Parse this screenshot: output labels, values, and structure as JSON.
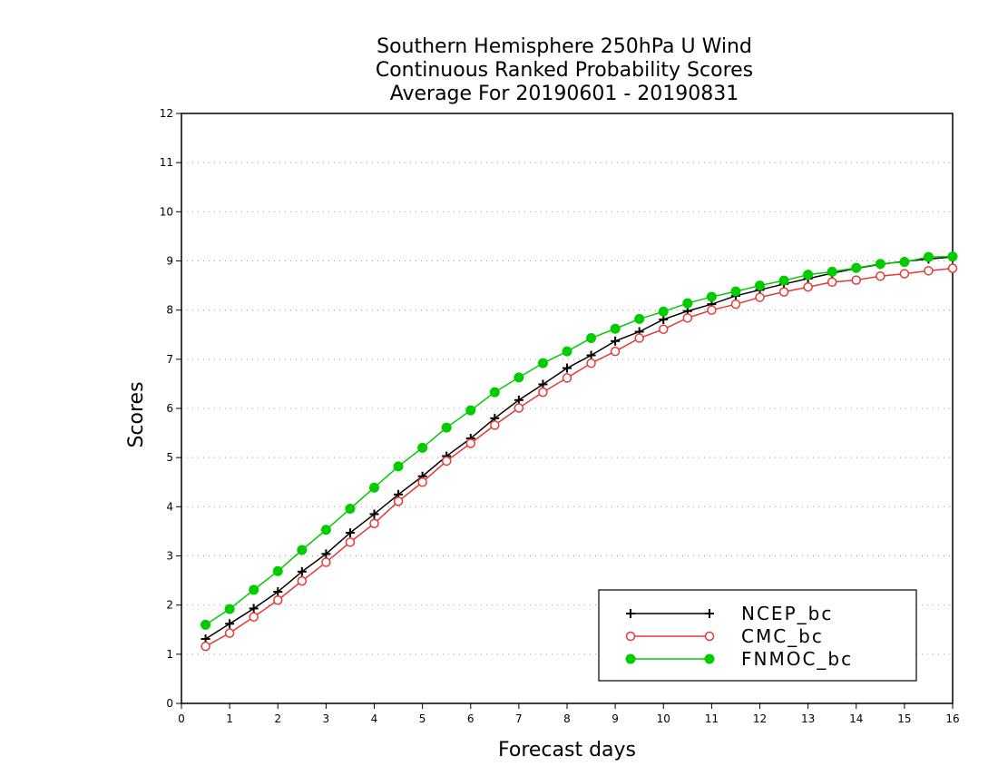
{
  "chart_data": {
    "type": "line",
    "title": [
      "Southern Hemisphere 250hPa U Wind",
      "Continuous Ranked Probability Scores",
      "Average For 20190601 - 20190831"
    ],
    "xlabel": "Forecast days",
    "ylabel": "Scores",
    "xlim": [
      0,
      16
    ],
    "ylim": [
      0,
      12
    ],
    "xticks": [
      "0",
      "1",
      "2",
      "3",
      "4",
      "5",
      "6",
      "7",
      "8",
      "9",
      "10",
      "11",
      "12",
      "13",
      "14",
      "15",
      "16"
    ],
    "yticks": [
      "0",
      "1",
      "2",
      "3",
      "4",
      "5",
      "6",
      "7",
      "8",
      "9",
      "10",
      "11",
      "12"
    ],
    "grid": "horizontal dotted",
    "legend_position": "bottom-right",
    "x": [
      0.5,
      1,
      1.5,
      2,
      2.5,
      3,
      3.5,
      4,
      4.5,
      5,
      5.5,
      6,
      6.5,
      7,
      7.5,
      8,
      8.5,
      9,
      9.5,
      10,
      10.5,
      11,
      11.5,
      12,
      12.5,
      13,
      13.5,
      14,
      14.5,
      15,
      15.5,
      16
    ],
    "series": [
      {
        "name": "NCEP_bc",
        "color": "#000000",
        "marker": "plus",
        "values": [
          1.31,
          1.62,
          1.93,
          2.27,
          2.68,
          3.04,
          3.47,
          3.85,
          4.25,
          4.62,
          5.03,
          5.39,
          5.8,
          6.17,
          6.49,
          6.82,
          7.08,
          7.37,
          7.56,
          7.81,
          7.98,
          8.12,
          8.29,
          8.41,
          8.53,
          8.64,
          8.75,
          8.85,
          8.93,
          8.99,
          9.04,
          9.08
        ]
      },
      {
        "name": "CMC_bc",
        "color": "#e53935",
        "marker": "open-circle",
        "values": [
          1.16,
          1.43,
          1.76,
          2.1,
          2.49,
          2.87,
          3.28,
          3.66,
          4.11,
          4.5,
          4.93,
          5.29,
          5.66,
          6.01,
          6.33,
          6.62,
          6.92,
          7.16,
          7.43,
          7.61,
          7.84,
          8.0,
          8.12,
          8.26,
          8.37,
          8.47,
          8.57,
          8.61,
          8.69,
          8.74,
          8.8,
          8.85
        ]
      },
      {
        "name": "FNMOC_bc",
        "color": "#00cc00",
        "marker": "filled-circle",
        "values": [
          1.6,
          1.92,
          2.31,
          2.69,
          3.12,
          3.53,
          3.96,
          4.39,
          4.82,
          5.2,
          5.61,
          5.96,
          6.33,
          6.63,
          6.92,
          7.16,
          7.43,
          7.62,
          7.82,
          7.97,
          8.14,
          8.27,
          8.38,
          8.5,
          8.6,
          8.72,
          8.78,
          8.86,
          8.94,
          8.98,
          9.08,
          9.09
        ]
      }
    ]
  }
}
